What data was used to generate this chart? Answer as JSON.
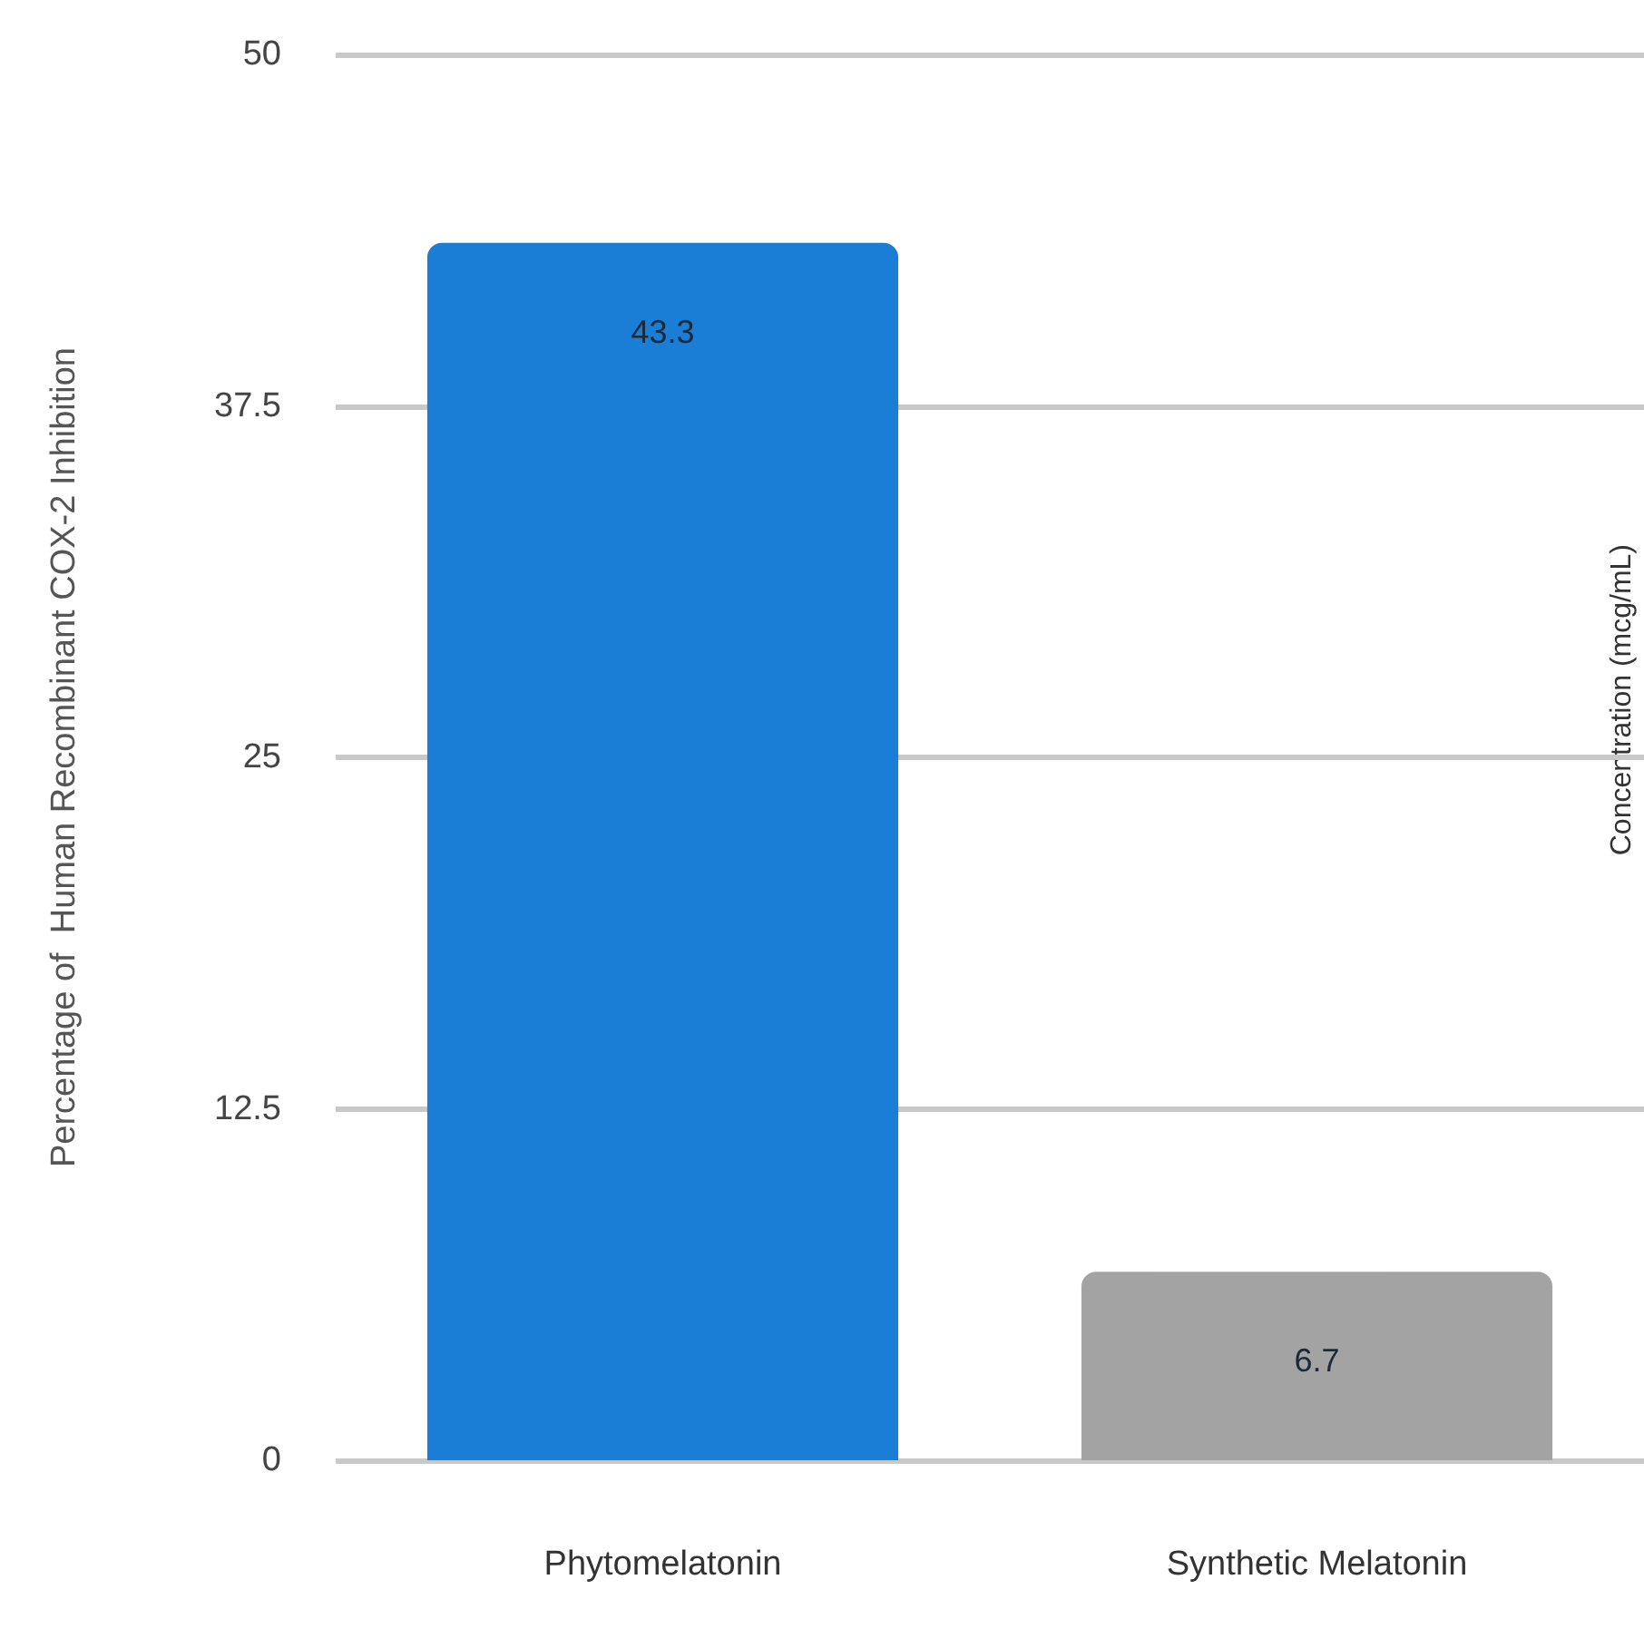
{
  "chart_data": {
    "type": "bar",
    "ylabel": "Percentage of  Human Recombinant COX-2 Inhibition",
    "categories": [
      "Phytomelatonin",
      "Synthetic Melatonin"
    ],
    "values": [
      43.3,
      6.7
    ],
    "colors": [
      "#1a7ed6",
      "#a3a3a3"
    ],
    "ylim": [
      0,
      50
    ],
    "yticks": [
      0,
      12.5,
      25,
      37.5,
      50
    ],
    "grid": "y",
    "data_labels": true,
    "annotations": [
      "Concentration (mcg/mL)"
    ]
  }
}
